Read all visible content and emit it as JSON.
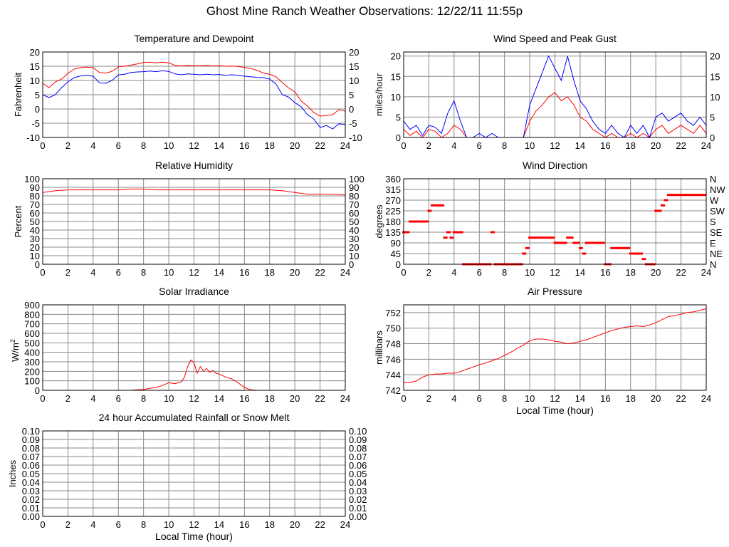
{
  "page_title": "Ghost Mine Ranch Weather Observations: 12/22/11 11:55p",
  "colors": {
    "series_a": "#ff0000",
    "series_b": "#0000ff",
    "grid": "#888888",
    "frame": "#000000"
  },
  "chart_data": [
    {
      "id": "temp",
      "type": "line",
      "title": "Temperature and Dewpoint",
      "xlabel": "",
      "ylabel": "Fahrenheit",
      "xlim": [
        0,
        24
      ],
      "ylim": [
        -10,
        20
      ],
      "yticks": [
        -10,
        -5,
        0,
        5,
        10,
        15,
        20
      ],
      "xticks": [
        0,
        2,
        4,
        6,
        8,
        10,
        12,
        14,
        16,
        18,
        20,
        22,
        24
      ],
      "right_ticks": [
        "-10",
        "-5",
        "0",
        "5",
        "10",
        "15",
        "20"
      ],
      "series": [
        {
          "color": "#ff0000",
          "x": [
            0,
            0.5,
            1,
            1.5,
            2,
            2.5,
            3,
            3.5,
            4,
            4.5,
            5,
            5.5,
            6,
            6.5,
            7,
            7.5,
            8,
            8.5,
            9,
            9.5,
            10,
            10.5,
            11,
            11.5,
            12,
            12.5,
            13,
            13.5,
            14,
            14.5,
            15,
            15.5,
            16,
            16.5,
            17,
            17.5,
            18,
            18.5,
            19,
            19.5,
            20,
            20.5,
            21,
            21.5,
            22,
            22.5,
            23,
            23.5,
            24
          ],
          "y": [
            9,
            7.5,
            9.5,
            10.5,
            12.5,
            14,
            14.5,
            14.7,
            14.5,
            12.8,
            12.6,
            13.2,
            14.8,
            15,
            15.4,
            15.8,
            16.3,
            16.4,
            16.2,
            16.4,
            16.2,
            15.3,
            15.1,
            15.3,
            15.2,
            15.2,
            15.3,
            15.1,
            15.2,
            15,
            15.1,
            14.9,
            14.6,
            14.2,
            13.6,
            12.6,
            12.2,
            11.3,
            9.3,
            7.4,
            6,
            2.8,
            1,
            -1.2,
            -2.5,
            -2.3,
            -2,
            -0.2,
            -0.8
          ]
        },
        {
          "color": "#0000ff",
          "x": [
            0,
            0.5,
            1,
            1.5,
            2,
            2.5,
            3,
            3.5,
            4,
            4.5,
            5,
            5.5,
            6,
            6.5,
            7,
            7.5,
            8,
            8.5,
            9,
            9.5,
            10,
            10.5,
            11,
            11.5,
            12,
            12.5,
            13,
            13.5,
            14,
            14.5,
            15,
            15.5,
            16,
            16.5,
            17,
            17.5,
            18,
            18.5,
            19,
            19.5,
            20,
            20.5,
            21,
            21.5,
            22,
            22.5,
            23,
            23.5,
            24
          ],
          "y": [
            5,
            4,
            5,
            7.5,
            9.5,
            11,
            11.6,
            11.8,
            11.5,
            9.2,
            9,
            10,
            12,
            12.2,
            12.8,
            13,
            13.1,
            13.3,
            13.1,
            13.4,
            13.2,
            12.3,
            12,
            12.3,
            12.2,
            12,
            12.2,
            12,
            12.1,
            11.8,
            12,
            11.8,
            11.5,
            11.3,
            11.1,
            11,
            10.5,
            8.8,
            5,
            4.2,
            2.2,
            0.8,
            -2,
            -3.5,
            -6.5,
            -5.8,
            -7,
            -5.2,
            -5.5
          ]
        }
      ]
    },
    {
      "id": "wind",
      "type": "line",
      "title": "Wind Speed and Peak Gust",
      "xlabel": "",
      "ylabel": "miles/hour",
      "xlim": [
        0,
        24
      ],
      "ylim": [
        0,
        21
      ],
      "yticks": [
        0,
        5,
        10,
        15,
        20
      ],
      "xticks": [
        0,
        2,
        4,
        6,
        8,
        10,
        12,
        14,
        16,
        18,
        20,
        22,
        24
      ],
      "right_ticks": [
        "0",
        "5",
        "10",
        "15",
        "20"
      ],
      "series": [
        {
          "color": "#ff0000",
          "x": [
            0,
            0.5,
            1,
            1.5,
            2,
            2.5,
            3,
            3.5,
            4,
            4.5,
            5,
            5.5,
            6,
            6.5,
            7,
            7.5,
            8,
            8.5,
            9,
            9.5,
            10,
            10.5,
            11,
            11.5,
            12,
            12.5,
            13,
            13.5,
            14,
            14.5,
            15,
            15.5,
            16,
            16.5,
            17,
            17.5,
            18,
            18.5,
            19,
            19.5,
            20,
            20.5,
            21,
            21.5,
            22,
            22.5,
            23,
            23.5,
            24
          ],
          "y": [
            2,
            0.5,
            1.5,
            0,
            2,
            1.5,
            0,
            1,
            3,
            2,
            0,
            0,
            0,
            0,
            0,
            0,
            0,
            0,
            0,
            0,
            4,
            6.5,
            8,
            10,
            11,
            9,
            10,
            8,
            5,
            4,
            2,
            1,
            0,
            1,
            0,
            0,
            1,
            0,
            1,
            0,
            2,
            3,
            1,
            2,
            3,
            2,
            1,
            3,
            1
          ]
        },
        {
          "color": "#0000ff",
          "x": [
            0,
            0.5,
            1,
            1.5,
            2,
            2.5,
            3,
            3.5,
            4,
            4.5,
            5,
            5.5,
            6,
            6.5,
            7,
            7.5,
            8,
            8.5,
            9,
            9.5,
            10,
            10.5,
            11,
            11.5,
            12,
            12.5,
            13,
            13.5,
            14,
            14.5,
            15,
            15.5,
            16,
            16.5,
            17,
            17.5,
            18,
            18.5,
            19,
            19.5,
            20,
            20.5,
            21,
            21.5,
            22,
            22.5,
            23,
            23.5,
            24
          ],
          "y": [
            4,
            2,
            3,
            0.5,
            3,
            2.5,
            1,
            6,
            9,
            4,
            0,
            0,
            1,
            0,
            1,
            0,
            0,
            0,
            0,
            0,
            8,
            12,
            16,
            20,
            17,
            14,
            20,
            14,
            9,
            7,
            4,
            2,
            1,
            3,
            1,
            0,
            3,
            1,
            3,
            0,
            5,
            6,
            4,
            5,
            6,
            4,
            3,
            5,
            3
          ]
        }
      ]
    },
    {
      "id": "rh",
      "type": "line",
      "title": "Relative Humidity",
      "xlabel": "",
      "ylabel": "Percent",
      "xlim": [
        0,
        24
      ],
      "ylim": [
        0,
        100
      ],
      "yticks": [
        0,
        10,
        20,
        30,
        40,
        50,
        60,
        70,
        80,
        90,
        100
      ],
      "xticks": [
        0,
        2,
        4,
        6,
        8,
        10,
        12,
        14,
        16,
        18,
        20,
        22,
        24
      ],
      "right_ticks": [
        "0",
        "10",
        "20",
        "30",
        "40",
        "50",
        "60",
        "70",
        "80",
        "90",
        "100"
      ],
      "series": [
        {
          "color": "#ff0000",
          "x": [
            0,
            1,
            2,
            3,
            4,
            5,
            6,
            7,
            8,
            9,
            10,
            11,
            12,
            13,
            14,
            15,
            16,
            17,
            18,
            19,
            20,
            21,
            22,
            23,
            24
          ],
          "y": [
            84,
            86,
            87,
            87,
            87,
            87,
            87,
            88,
            88,
            87,
            87,
            87,
            87,
            87,
            87,
            87,
            87,
            87,
            87,
            86,
            84,
            82,
            82,
            82,
            81
          ]
        }
      ]
    },
    {
      "id": "winddir",
      "type": "scatter",
      "title": "Wind Direction",
      "xlabel": "",
      "ylabel": "degrees",
      "xlim": [
        0,
        24
      ],
      "ylim": [
        0,
        360
      ],
      "yticks": [
        0,
        45,
        90,
        135,
        180,
        225,
        270,
        315,
        360
      ],
      "xticks": [
        0,
        2,
        4,
        6,
        8,
        10,
        12,
        14,
        16,
        18,
        20,
        22,
        24
      ],
      "right_ticks": [
        "N",
        "NE",
        "E",
        "SE",
        "S",
        "SW",
        "W",
        "NW",
        "N"
      ],
      "series": [
        {
          "color": "#ff0000",
          "x": [
            0,
            0.25,
            0.5,
            0.75,
            1,
            1.25,
            1.5,
            1.75,
            2,
            2.25,
            2.5,
            2.75,
            3,
            3.25,
            3.5,
            3.75,
            4,
            4.25,
            4.5,
            4.75,
            5,
            5.25,
            5.5,
            5.75,
            6,
            6.25,
            6.5,
            6.75,
            7,
            7.25,
            7.5,
            7.75,
            8,
            8.25,
            8.5,
            8.75,
            9,
            9.25,
            9.5,
            9.75,
            10,
            10.25,
            10.5,
            10.75,
            11,
            11.25,
            11.5,
            11.75,
            12,
            12.25,
            12.5,
            12.75,
            13,
            13.25,
            13.5,
            13.75,
            14,
            14.25,
            14.5,
            14.75,
            15,
            15.25,
            15.5,
            15.75,
            16,
            16.25,
            16.5,
            16.75,
            17,
            17.25,
            17.5,
            17.75,
            18,
            18.25,
            18.5,
            18.75,
            19,
            19.25,
            19.5,
            19.75,
            20,
            20.25,
            20.5,
            20.75,
            21,
            21.25,
            21.5,
            21.75,
            22,
            22.25,
            22.5,
            22.75,
            23,
            23.25,
            23.5,
            23.75
          ],
          "y": [
            135,
            135,
            180,
            180,
            180,
            180,
            180,
            180,
            225,
            248,
            248,
            248,
            248,
            112,
            135,
            112,
            135,
            135,
            135,
            0,
            0,
            0,
            0,
            0,
            0,
            0,
            0,
            0,
            135,
            0,
            0,
            0,
            0,
            0,
            0,
            0,
            0,
            0,
            45,
            68,
            112,
            112,
            112,
            112,
            112,
            112,
            112,
            112,
            90,
            90,
            90,
            90,
            112,
            112,
            90,
            90,
            68,
            45,
            90,
            90,
            90,
            90,
            90,
            90,
            0,
            0,
            68,
            68,
            68,
            68,
            68,
            68,
            45,
            45,
            45,
            45,
            22,
            0,
            0,
            0,
            225,
            225,
            248,
            270,
            292,
            292,
            292,
            292,
            292,
            292,
            292,
            292,
            292,
            292,
            292,
            292
          ]
        }
      ]
    },
    {
      "id": "solar",
      "type": "line",
      "title": "Solar Irradiance",
      "xlabel": "",
      "ylabel": "W/m2",
      "xlim": [
        0,
        24
      ],
      "ylim": [
        0,
        900
      ],
      "yticks": [
        0,
        100,
        200,
        300,
        400,
        500,
        600,
        700,
        800,
        900
      ],
      "xticks": [
        0,
        2,
        4,
        6,
        8,
        10,
        12,
        14,
        16,
        18,
        20,
        22,
        24
      ],
      "series": [
        {
          "color": "#ff0000",
          "x": [
            0,
            7,
            7.5,
            8,
            8.5,
            9,
            9.5,
            10,
            10.5,
            11,
            11.25,
            11.5,
            11.75,
            12,
            12.25,
            12.5,
            12.75,
            13,
            13.25,
            13.5,
            13.75,
            14,
            14.5,
            15,
            15.5,
            16,
            16.5,
            17,
            24
          ],
          "y": [
            0,
            0,
            5,
            10,
            20,
            30,
            50,
            80,
            70,
            90,
            140,
            250,
            320,
            290,
            180,
            250,
            200,
            230,
            190,
            210,
            180,
            170,
            140,
            120,
            80,
            30,
            5,
            0,
            0
          ]
        }
      ]
    },
    {
      "id": "pressure",
      "type": "line",
      "title": "Air Pressure",
      "xlabel": "Local Time (hour)",
      "ylabel": "millibars",
      "xlim": [
        0,
        24
      ],
      "ylim": [
        742,
        753
      ],
      "yticks": [
        742,
        744,
        746,
        748,
        750,
        752
      ],
      "xticks": [
        0,
        2,
        4,
        6,
        8,
        10,
        12,
        14,
        16,
        18,
        20,
        22,
        24
      ],
      "series": [
        {
          "color": "#ff0000",
          "x": [
            0,
            0.5,
            1,
            1.5,
            2,
            2.5,
            3,
            3.5,
            4,
            4.5,
            5,
            5.5,
            6,
            6.5,
            7,
            7.5,
            8,
            8.5,
            9,
            9.5,
            10,
            10.5,
            11,
            11.5,
            12,
            12.5,
            13,
            13.5,
            14,
            14.5,
            15,
            15.5,
            16,
            16.5,
            17,
            17.5,
            18,
            18.5,
            19,
            19.5,
            20,
            20.5,
            21,
            21.5,
            22,
            22.5,
            23,
            23.5,
            24
          ],
          "y": [
            743,
            743,
            743.2,
            743.7,
            744,
            744.1,
            744.1,
            744.2,
            744.2,
            744.4,
            744.7,
            745,
            745.3,
            745.5,
            745.8,
            746.1,
            746.5,
            746.9,
            747.4,
            747.8,
            748.4,
            748.6,
            748.6,
            748.5,
            748.3,
            748.2,
            748.0,
            748.1,
            748.3,
            748.5,
            748.8,
            749.1,
            749.4,
            749.7,
            749.9,
            750.1,
            750.2,
            750.3,
            750.2,
            750.4,
            750.7,
            751.1,
            751.5,
            751.6,
            751.8,
            752,
            752.1,
            752.3,
            752.5
          ]
        }
      ]
    },
    {
      "id": "rain",
      "type": "line",
      "title": "24 hour Accumulated Rainfall or Snow Melt",
      "xlabel": "Local Time (hour)",
      "ylabel": "Inches",
      "xlim": [
        0,
        24
      ],
      "ylim": [
        0,
        0.1
      ],
      "yticks": [
        0,
        0.01,
        0.02,
        0.03,
        0.04,
        0.05,
        0.06,
        0.07,
        0.08,
        0.09,
        0.1
      ],
      "ytick_labels": [
        "0.00",
        "0.01",
        "0.02",
        "0.03",
        "0.04",
        "0.05",
        "0.06",
        "0.07",
        "0.08",
        "0.09",
        "0.10"
      ],
      "xticks": [
        0,
        2,
        4,
        6,
        8,
        10,
        12,
        14,
        16,
        18,
        20,
        22,
        24
      ],
      "right_ticks": [
        "0.00",
        "0.01",
        "0.02",
        "0.03",
        "0.04",
        "0.05",
        "0.06",
        "0.07",
        "0.08",
        "0.09",
        "0.10"
      ],
      "series": [
        {
          "color": "#ff0000",
          "x": [
            0,
            24
          ],
          "y": [
            0,
            0
          ]
        }
      ]
    }
  ]
}
